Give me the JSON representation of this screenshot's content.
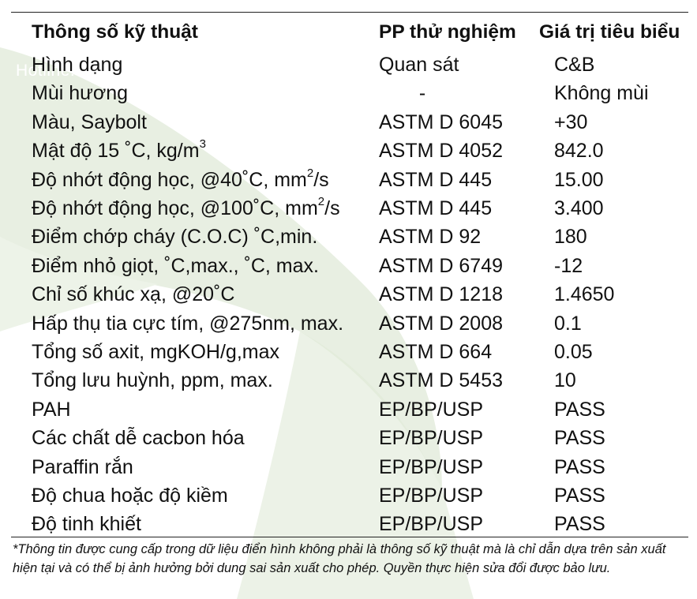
{
  "watermark": {
    "hotline": "Hotline: 0919770028"
  },
  "table": {
    "headers": {
      "parameter": "Thông số kỹ thuật",
      "method": "PP thử nghiệm",
      "value": "Giá trị tiêu biểu"
    },
    "rows": [
      {
        "parameter": "Hình dạng",
        "method": "Quan sát",
        "value": "C&B"
      },
      {
        "parameter": "Mùi hương",
        "method": "-",
        "value": "Không mùi"
      },
      {
        "parameter": "Màu, Saybolt",
        "method": "ASTM D 6045",
        "value": "+30"
      },
      {
        "parameter": "Mật độ 15 ˚C, kg/m",
        "parameter_sup": "3",
        "parameter_tail": "",
        "method": "ASTM D 4052",
        "value": "842.0"
      },
      {
        "parameter": "Độ nhớt động học, @40˚C, mm",
        "parameter_sup": "2",
        "parameter_tail": "/s",
        "method": "ASTM D 445",
        "value": "15.00"
      },
      {
        "parameter": "Độ nhớt động học, @100˚C, mm",
        "parameter_sup": "2",
        "parameter_tail": "/s",
        "method": "ASTM D 445",
        "value": "3.400"
      },
      {
        "parameter": "Điểm chớp cháy (C.O.C) ˚C,min.",
        "method": "ASTM D 92",
        "value": "180"
      },
      {
        "parameter": "Điểm nhỏ giọt, ˚C,max., ˚C, max.",
        "method": "ASTM D 6749",
        "value": "-12"
      },
      {
        "parameter": "Chỉ số khúc xạ, @20˚C",
        "method": "ASTM D 1218",
        "value": "1.4650"
      },
      {
        "parameter": "Hấp thụ tia cực tím, @275nm, max.",
        "method": "ASTM D 2008",
        "value": "0.1"
      },
      {
        "parameter": "Tổng số axit, mgKOH/g,max",
        "method": "ASTM D 664",
        "value": "0.05"
      },
      {
        "parameter": "Tổng lưu huỳnh, ppm, max.",
        "method": "ASTM D 5453",
        "value": "10"
      },
      {
        "parameter": "PAH",
        "method": "EP/BP/USP",
        "value": "PASS"
      },
      {
        "parameter": "Các chất dễ cacbon hóa",
        "method": "EP/BP/USP",
        "value": "PASS"
      },
      {
        "parameter": "Paraffin rắn",
        "method": "EP/BP/USP",
        "value": "PASS"
      },
      {
        "parameter": "Độ chua hoặc độ kiềm",
        "method": "EP/BP/USP",
        "value": "PASS"
      },
      {
        "parameter": "Độ tinh khiết",
        "method": "EP/BP/USP",
        "value": "PASS"
      }
    ]
  },
  "footnote": "*Thông tin được cung cấp trong dữ liệu điển hình không phải là thông số kỹ thuật mà là chỉ dẫn dựa trên sản xuất hiện tại và có thể bị ảnh hưởng bởi dung sai sản xuất cho phép. Quyền thực hiện sửa đổi được bảo lưu.",
  "colors": {
    "leaf": "#e7efe1",
    "leaf_dark": "#d7e4cf",
    "text": "#111111",
    "rule": "#222222"
  }
}
